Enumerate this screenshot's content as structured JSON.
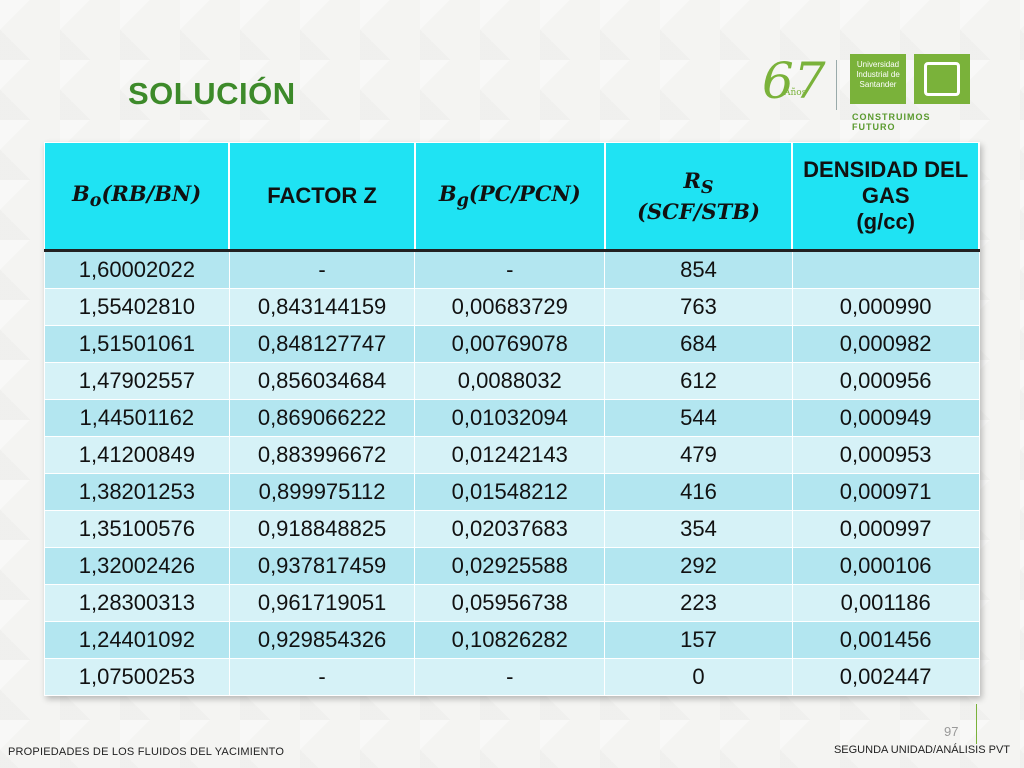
{
  "slide": {
    "title": "SOLUCIÓN",
    "page_number": "97",
    "footer_left": "PROPIEDADES DE LOS FLUIDOS DEL YACIMIENTO",
    "footer_right": "SEGUNDA UNIDAD/ANÁLISIS PVT"
  },
  "logo": {
    "anniversary": "67",
    "anniversary_suffix": "Años",
    "university_name": "Universidad Industrial de Santander",
    "slogan": "CONSTRUIMOS FUTURO"
  },
  "table": {
    "headers": [
      "Bo(RB/BN)",
      "FACTOR Z",
      "Bg(PC/PCN)",
      "Rs (SCF/STB)",
      "DENSIDAD DEL GAS (g/cc)"
    ],
    "header_parts": {
      "bo_main": "B",
      "bo_sub": "o",
      "bo_unit": "(RB/BN)",
      "z": "FACTOR Z",
      "bg_main": "B",
      "bg_sub": "g",
      "bg_unit": "(PC/PCN)",
      "rs_main": "R",
      "rs_sub": "S",
      "rs_unit": "(SCF/STB)",
      "dens_line1": "DENSIDAD DEL",
      "dens_line2": "GAS",
      "dens_line3": "(g/cc)"
    },
    "rows": [
      [
        "1,60002022",
        "-",
        "-",
        "854",
        ""
      ],
      [
        "1,55402810",
        "0,843144159",
        "0,00683729",
        "763",
        "0,000990"
      ],
      [
        "1,51501061",
        "0,848127747",
        "0,00769078",
        "684",
        "0,000982"
      ],
      [
        "1,47902557",
        "0,856034684",
        "0,0088032",
        "612",
        "0,000956"
      ],
      [
        "1,44501162",
        "0,869066222",
        "0,01032094",
        "544",
        "0,000949"
      ],
      [
        "1,41200849",
        "0,883996672",
        "0,01242143",
        "479",
        "0,000953"
      ],
      [
        "1,38201253",
        "0,899975112",
        "0,01548212",
        "416",
        "0,000971"
      ],
      [
        "1,35100576",
        "0,918848825",
        "0,02037683",
        "354",
        "0,000997"
      ],
      [
        "1,32002426",
        "0,937817459",
        "0,02925588",
        "292",
        "0,000106"
      ],
      [
        "1,28300313",
        "0,961719051",
        "0,05956738",
        "223",
        "0,001186"
      ],
      [
        "1,24401092",
        "0,929854326",
        "0,10826282",
        "157",
        "0,001456"
      ],
      [
        "1,07500253",
        "-",
        "-",
        "0",
        "0,002447"
      ]
    ]
  },
  "colors": {
    "header_bg": "#1fe3f3",
    "row_odd": "#b3e6f0",
    "row_even": "#d6f2f7",
    "title": "#3d8a2a",
    "brand_green": "#7ab23a"
  }
}
